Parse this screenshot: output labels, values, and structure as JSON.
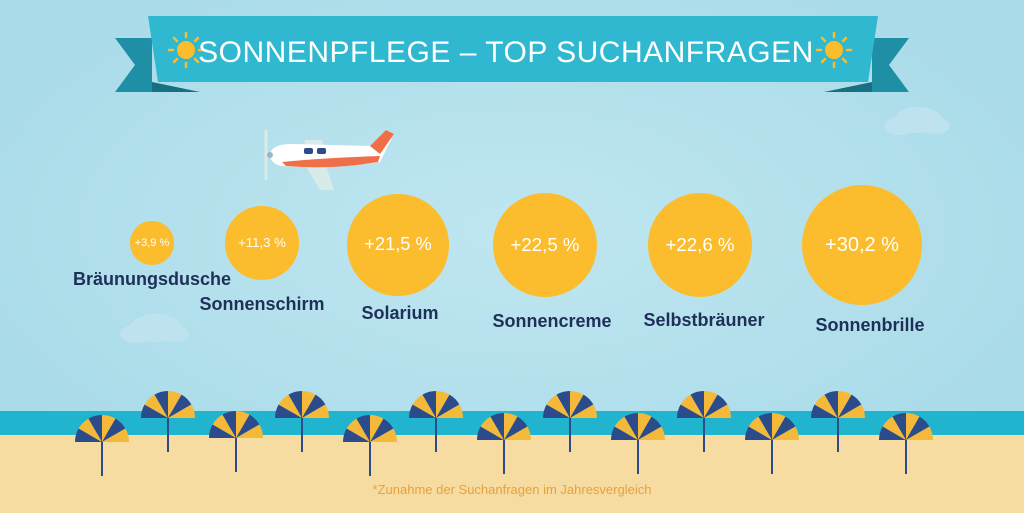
{
  "title": "SONNENPFLEGE – TOP SUCHANFRAGEN",
  "footnote": "*Zunahme der Suchanfragen im Jahresvergleich",
  "colors": {
    "sky": "#a9dbe9",
    "banner": "#2fb8cf",
    "banner_dark": "#1f8fa6",
    "bubble": "#fbbd2d",
    "label": "#1e2f58",
    "sea": "#21b4cf",
    "sand": "#f7dca1",
    "umbrella_blue": "#2c4b8b",
    "umbrella_yellow": "#f4b938",
    "footnote": "#e6a23c"
  },
  "chart_data": {
    "type": "bubble",
    "title": "SONNENPFLEGE – TOP SUCHANFRAGEN",
    "unit": "%",
    "categories": [
      "Bräunungsdusche",
      "Sonnenschirm",
      "Solarium",
      "Sonnencreme",
      "Selbstbräuner",
      "Sonnenbrille"
    ],
    "values": [
      3.9,
      11.3,
      21.5,
      22.5,
      22.6,
      30.2
    ],
    "labels": [
      "+3,9 %",
      "+11,3 %",
      "+21,5 %",
      "+22,5 %",
      "+22,6 %",
      "+30,2 %"
    ]
  }
}
